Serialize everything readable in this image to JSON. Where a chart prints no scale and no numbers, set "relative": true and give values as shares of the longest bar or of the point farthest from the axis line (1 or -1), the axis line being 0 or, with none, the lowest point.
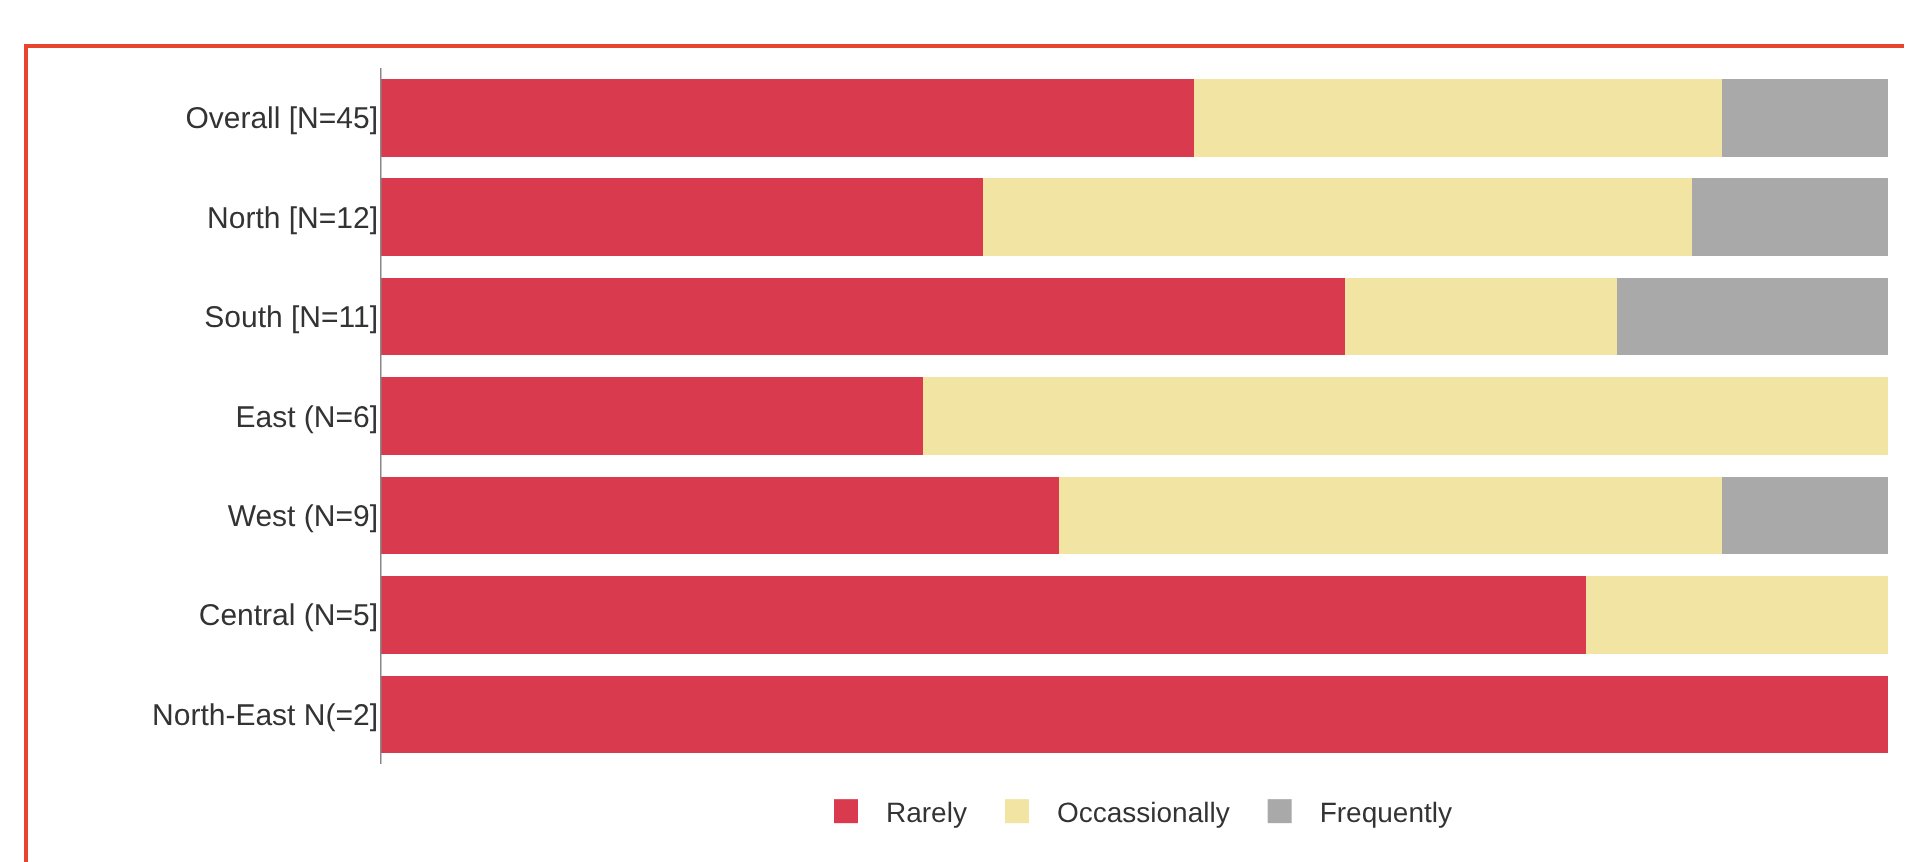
{
  "chart_data": {
    "type": "bar",
    "orientation": "horizontal",
    "stacked": true,
    "relative": true,
    "legend": "bottom",
    "categories": [
      "Overall [N=45]",
      "North [N=12]",
      "South [N=11]",
      "East (N=6]",
      "West (N=9]",
      "Central (N=5]",
      "North-East N(=2]"
    ],
    "series": [
      {
        "name": "Rarely",
        "color": "#d93a4e",
        "values": [
          0.54,
          0.4,
          0.64,
          0.36,
          0.45,
          0.8,
          1
        ]
      },
      {
        "name": "Occassionally",
        "color": "#f2e4a2",
        "values": [
          0.35,
          0.47,
          0.18,
          0.64,
          0.44,
          0.2,
          0
        ]
      },
      {
        "name": "Frequently",
        "color": "#a9a9a9",
        "values": [
          0.11,
          0.13,
          0.18,
          0,
          0.11,
          0,
          0
        ]
      }
    ]
  }
}
